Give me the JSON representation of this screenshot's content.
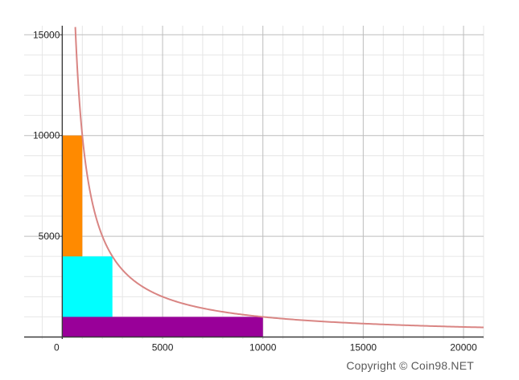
{
  "chart_data": {
    "type": "line",
    "title": "",
    "xlabel": "",
    "ylabel": "",
    "xlim": [
      -1900,
      21000
    ],
    "ylim": [
      -100,
      15450
    ],
    "x_ticks": [
      0,
      5000,
      10000,
      15000,
      20000
    ],
    "x_tick_labels": [
      "0",
      "5000",
      "10000",
      "15000",
      "20000"
    ],
    "y_ticks": [
      5000,
      10000,
      15000
    ],
    "y_tick_labels": [
      "5000",
      "10000",
      "15000"
    ],
    "grid": true,
    "minor_grid_step": 1000,
    "curve": {
      "equation": "x * y = 10000000",
      "k": 10000000,
      "x_start": 650,
      "x_end": 21000,
      "color": "#d98583"
    },
    "rectangles": [
      {
        "x0": 0,
        "x1": 1000,
        "y0": 0,
        "y1": 10000,
        "color": "#ff8a00"
      },
      {
        "x0": 0,
        "x1": 2500,
        "y0": 0,
        "y1": 4000,
        "color": "#00ffff"
      },
      {
        "x0": 0,
        "x1": 10000,
        "y0": 0,
        "y1": 1000,
        "color": "#990099"
      }
    ]
  },
  "watermark": "Copyright © Coin98.NET"
}
